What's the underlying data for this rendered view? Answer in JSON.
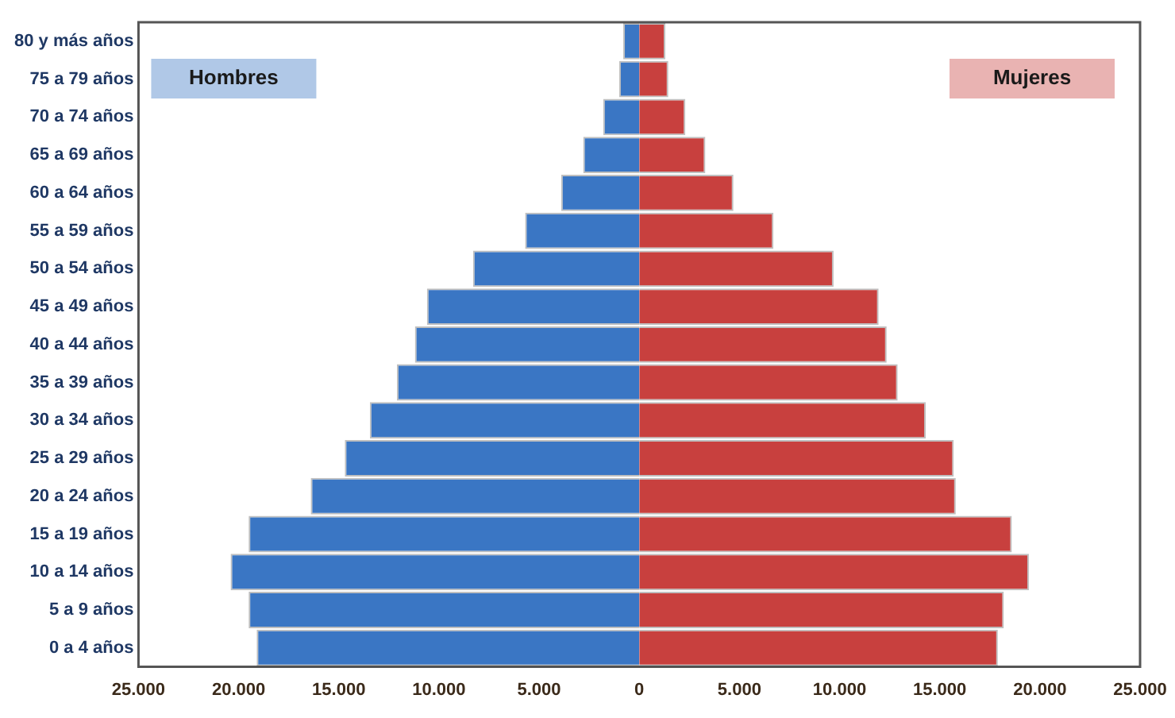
{
  "chart_data": {
    "type": "bar",
    "orientation": "horizontal",
    "stacked": true,
    "grid": false,
    "legend": false,
    "categories": [
      "80 y más años",
      "75 a 79 años",
      "70 a 74 años",
      "65 a 69 años",
      "60 a 64 años",
      "55 a 59 años",
      "50 a 54 años",
      "45 a 49 años",
      "40 a 44 años",
      "35 a 39 años",
      "30 a 34 años",
      "25 a 29 años",
      "20 a 24 años",
      "15 a 19 años",
      "10 a 14 años",
      "5 a 9 años",
      "0 a 4 años"
    ],
    "series": [
      {
        "name": "Hombres",
        "color": "#3a76c4",
        "values": [
          -800,
          -1000,
          -1800,
          -2800,
          -3900,
          -5700,
          -8300,
          -10600,
          -11200,
          -12100,
          -13450,
          -14700,
          -16400,
          -19500,
          -20400,
          -19500,
          -19100
        ]
      },
      {
        "name": "Mujeres",
        "color": "#c8403e",
        "values": [
          1300,
          1450,
          2300,
          3300,
          4700,
          6700,
          9700,
          11950,
          12350,
          12900,
          14300,
          15700,
          15800,
          18600,
          19450,
          18200,
          17900
        ]
      }
    ],
    "xlim": [
      -25000,
      25000
    ],
    "xticks": [
      {
        "value": -25000,
        "label": "25.000"
      },
      {
        "value": -20000,
        "label": "20.000"
      },
      {
        "value": -15000,
        "label": "15.000"
      },
      {
        "value": -10000,
        "label": "10.000"
      },
      {
        "value": -5000,
        "label": "5.000"
      },
      0,
      {
        "value": 5000,
        "label": "5.000"
      },
      {
        "value": 10000,
        "label": "10.000"
      },
      {
        "value": 15000,
        "label": "15.000"
      },
      {
        "value": 20000,
        "label": "20.000"
      },
      {
        "value": 25000,
        "label": "25.000"
      }
    ]
  }
}
